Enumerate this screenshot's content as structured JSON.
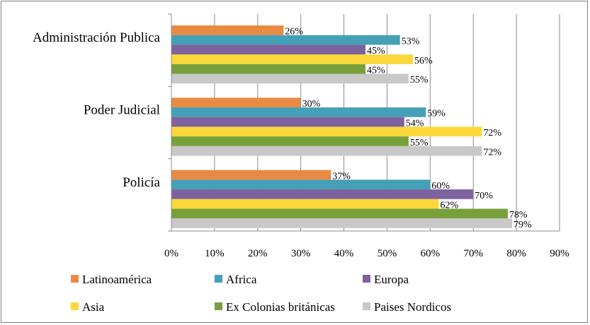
{
  "chart_data": {
    "type": "bar",
    "orientation": "horizontal",
    "categories": [
      "Administración Publica",
      "Poder Judicial",
      "Policía"
    ],
    "series": [
      {
        "name": "Latinoamérica",
        "color": "#e98a44",
        "values": [
          26,
          30,
          37
        ],
        "labels": [
          "26%",
          "30%",
          "37%"
        ]
      },
      {
        "name": "Africa",
        "color": "#44a0b6",
        "values": [
          53,
          59,
          60
        ],
        "labels": [
          "53%",
          "59%",
          "60%"
        ]
      },
      {
        "name": "Europa",
        "color": "#7e62a0",
        "values": [
          45,
          54,
          70
        ],
        "labels": [
          "45%",
          "54%",
          "70%"
        ]
      },
      {
        "name": "Asia",
        "color": "#fbd73a",
        "values": [
          56,
          72,
          62
        ],
        "labels": [
          "56%",
          "72%",
          "62%"
        ]
      },
      {
        "name": "Ex Colonias británicas",
        "color": "#78a03a",
        "values": [
          45,
          55,
          78
        ],
        "labels": [
          "45%",
          "55%",
          "78%"
        ]
      },
      {
        "name": "Paises Nordicos",
        "color": "#c8c8c8",
        "values": [
          55,
          72,
          79
        ],
        "labels": [
          "55%",
          "72%",
          "79%"
        ]
      }
    ],
    "xlim": [
      0,
      90
    ],
    "xticks": [
      "0%",
      "10%",
      "20%",
      "30%",
      "40%",
      "50%",
      "60%",
      "70%",
      "80%",
      "90%"
    ],
    "grid": true,
    "legend_position": "bottom"
  }
}
